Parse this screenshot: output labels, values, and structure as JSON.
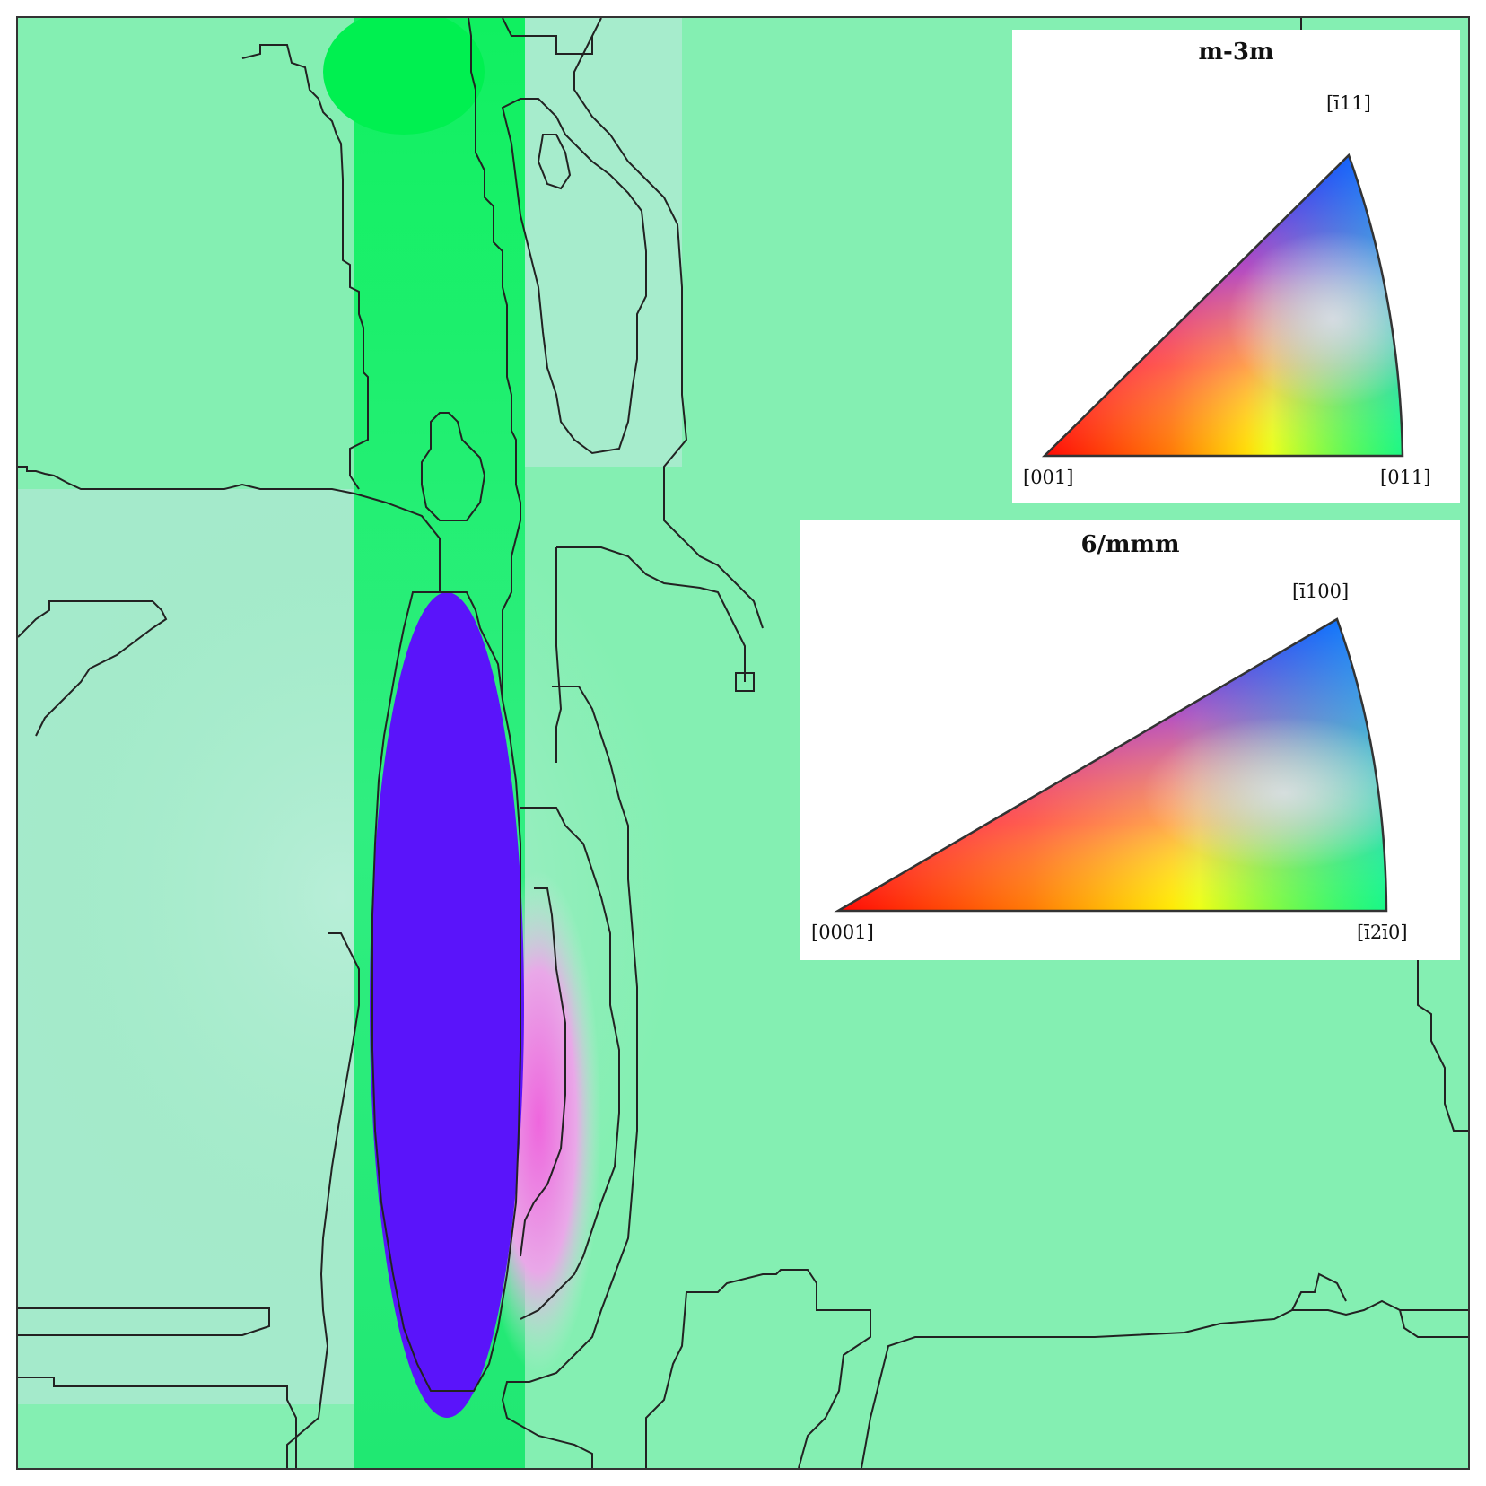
{
  "figure": {
    "map_background_color": "#84efb2",
    "grain_colors": {
      "matrix_green": "#84efb2",
      "bright_green": "#19f06a",
      "blue_grain": "#5a14fa",
      "pale_mint": "#a7ebcc",
      "magenta_tint": "#ee6cdf",
      "boundary_line": "#222222"
    }
  },
  "legend_cubic": {
    "title": "m-3m",
    "corner_labels": {
      "bottom_left": "[001]",
      "bottom_right": "[011]",
      "top": "[ī11]"
    },
    "corner_colors": {
      "bottom_left": "#ff0000",
      "bottom_right": "#00ff00",
      "top": "#0000ff"
    }
  },
  "legend_hex": {
    "title": "6/mmm",
    "corner_labels": {
      "bottom_left": "[0001]",
      "bottom_right": "[ī2ī0]",
      "top": "[ī100]"
    },
    "corner_colors": {
      "bottom_left": "#ff0000",
      "bottom_right": "#00ff00",
      "top": "#0000ff"
    }
  }
}
